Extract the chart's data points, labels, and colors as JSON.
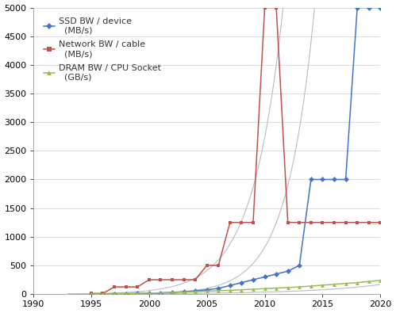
{
  "ssd_x": [
    1995,
    1996,
    1997,
    1998,
    1999,
    2000,
    2001,
    2002,
    2003,
    2004,
    2005,
    2006,
    2007,
    2008,
    2009,
    2010,
    2011,
    2012,
    2013,
    2014,
    2015,
    2016,
    2017,
    2018,
    2019,
    2020
  ],
  "ssd_y": [
    2,
    3,
    5,
    7,
    10,
    15,
    20,
    30,
    40,
    55,
    75,
    100,
    150,
    200,
    250,
    300,
    350,
    400,
    500,
    2000,
    2000,
    2000,
    2000,
    5000,
    5000,
    5000
  ],
  "net_x": [
    1995,
    1996,
    1997,
    1998,
    1999,
    2000,
    2001,
    2002,
    2003,
    2004,
    2005,
    2006,
    2007,
    2008,
    2009,
    2010,
    2011,
    2012,
    2013,
    2014,
    2015,
    2016,
    2017,
    2018,
    2019,
    2020
  ],
  "net_y": [
    10,
    10,
    125,
    125,
    125,
    250,
    250,
    250,
    250,
    250,
    500,
    500,
    1250,
    1250,
    1250,
    5000,
    5000,
    1250,
    1250,
    1250,
    1250,
    1250,
    1250,
    1250,
    1250,
    1250
  ],
  "dram_x": [
    1995,
    1996,
    1997,
    1998,
    1999,
    2000,
    2001,
    2002,
    2003,
    2004,
    2005,
    2006,
    2007,
    2008,
    2009,
    2010,
    2011,
    2012,
    2013,
    2014,
    2015,
    2016,
    2017,
    2018,
    2019,
    2020
  ],
  "dram_y": [
    2,
    3,
    5,
    8,
    12,
    16,
    22,
    28,
    35,
    42,
    50,
    58,
    65,
    75,
    85,
    95,
    105,
    115,
    125,
    140,
    155,
    170,
    185,
    200,
    220,
    240
  ],
  "ssd_trend_params": [
    1993.5,
    0.42,
    0.8
  ],
  "net_trend_params": [
    1991.0,
    0.38,
    2.0
  ],
  "dram_trend_params": [
    1988.0,
    0.16,
    1.0
  ],
  "ssd_color": "#4472C4",
  "net_color": "#C0504D",
  "dram_color": "#9BBB59",
  "trend_color": "#BBBBBB",
  "xlim": [
    1990,
    2020
  ],
  "ylim": [
    0,
    5000
  ],
  "yticks": [
    0,
    500,
    1000,
    1500,
    2000,
    2500,
    3000,
    3500,
    4000,
    4500,
    5000
  ],
  "xticks": [
    1990,
    1995,
    2000,
    2005,
    2010,
    2015,
    2020
  ],
  "ssd_label": "SSD BW / device\n  (MB/s)",
  "net_label": "Network BW / cable\n  (MB/s)",
  "dram_label": "DRAM BW / CPU Socket\n  (GB/s)",
  "bg_color": "#FFFFFF",
  "grid_color": "#D0D0D0",
  "tick_fontsize": 8,
  "legend_fontsize": 8
}
